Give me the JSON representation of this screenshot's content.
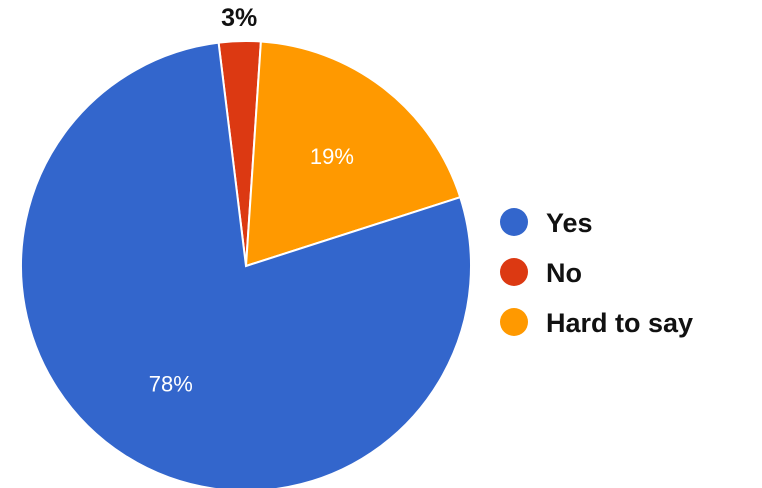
{
  "chart_data": {
    "type": "pie",
    "categories": [
      "Yes",
      "No",
      "Hard to say"
    ],
    "values": [
      78,
      3,
      19
    ],
    "labels": [
      "78%",
      "3%",
      "19%"
    ],
    "colors": [
      "#3366cc",
      "#dc3912",
      "#ff9900"
    ],
    "start_angle_deg": -7,
    "legend": {
      "position": "right",
      "entries": [
        "Yes",
        "No",
        "Hard to say"
      ]
    }
  }
}
